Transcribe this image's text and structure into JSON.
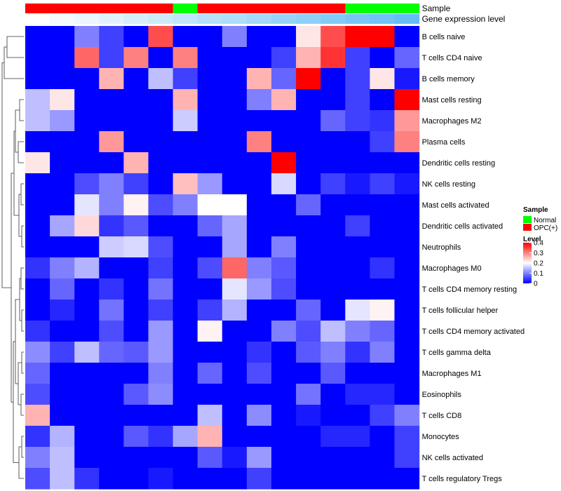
{
  "chart_data": {
    "type": "heatmap",
    "title": "",
    "columns_count": 16,
    "annotation_tracks": [
      {
        "name": "Sample",
        "values": [
          "OPC(+)",
          "OPC(+)",
          "OPC(+)",
          "OPC(+)",
          "OPC(+)",
          "OPC(+)",
          "Normal",
          "OPC(+)",
          "OPC(+)",
          "OPC(+)",
          "OPC(+)",
          "OPC(+)",
          "OPC(+)",
          "Normal",
          "Normal",
          "Normal"
        ]
      },
      {
        "name": "Gene expression level",
        "values": [
          0,
          0.07,
          0.13,
          0.2,
          0.27,
          0.33,
          0.4,
          0.47,
          0.53,
          0.6,
          0.67,
          0.73,
          0.8,
          0.87,
          0.93,
          1.0
        ]
      }
    ],
    "rows": [
      "B cells naive",
      "T cells CD4 naive",
      "B cells memory",
      "Mast cells resting",
      "Macrophages M2",
      "Plasma cells",
      "Dendritic cells resting",
      "NK cells resting",
      "Mast cells activated",
      "Dendritic cells activated",
      "Neutrophils",
      "Macrophages M0",
      "T cells CD4 memory resting",
      "T cells follicular helper",
      "T cells CD4 memory activated",
      "T cells gamma delta",
      "Macrophages M1",
      "Eosinophils",
      "T cells CD8",
      "Monocytes",
      "NK cells activated",
      "T cells regulatory  Tregs"
    ],
    "values": [
      [
        0.0,
        0.0,
        0.1,
        0.05,
        0.0,
        0.34,
        0.0,
        0.0,
        0.1,
        0.0,
        0.0,
        0.22,
        0.34,
        0.4,
        0.4,
        0.0
      ],
      [
        0.0,
        0.0,
        0.32,
        0.05,
        0.3,
        0.0,
        0.3,
        0.0,
        0.0,
        0.0,
        0.05,
        0.26,
        0.36,
        0.05,
        0.0,
        0.08
      ],
      [
        0.0,
        0.0,
        0.0,
        0.26,
        0.0,
        0.15,
        0.05,
        0.0,
        0.0,
        0.26,
        0.08,
        0.4,
        0.0,
        0.05,
        0.22,
        0.02
      ],
      [
        0.15,
        0.22,
        0.0,
        0.0,
        0.0,
        0.0,
        0.26,
        0.0,
        0.0,
        0.1,
        0.26,
        0.0,
        0.0,
        0.05,
        0.0,
        0.4
      ],
      [
        0.15,
        0.12,
        0.0,
        0.0,
        0.0,
        0.0,
        0.16,
        0.0,
        0.0,
        0.0,
        0.0,
        0.0,
        0.08,
        0.05,
        0.04,
        0.28
      ],
      [
        0.0,
        0.0,
        0.0,
        0.28,
        0.0,
        0.0,
        0.0,
        0.0,
        0.0,
        0.3,
        0.0,
        0.0,
        0.0,
        0.0,
        0.05,
        0.3
      ],
      [
        0.22,
        0.0,
        0.0,
        0.0,
        0.26,
        0.0,
        0.0,
        0.0,
        0.0,
        0.0,
        0.4,
        0.0,
        0.0,
        0.0,
        0.0,
        0.0
      ],
      [
        0.0,
        0.0,
        0.06,
        0.1,
        0.05,
        0.0,
        0.25,
        0.12,
        0.0,
        0.0,
        0.17,
        0.0,
        0.05,
        0.02,
        0.05,
        0.02
      ],
      [
        0.0,
        0.0,
        0.18,
        0.1,
        0.21,
        0.06,
        0.1,
        0.2,
        0.2,
        0.0,
        0.0,
        0.08,
        0.0,
        0.0,
        0.0,
        0.0
      ],
      [
        0.0,
        0.13,
        0.23,
        0.04,
        0.07,
        0.0,
        0.0,
        0.08,
        0.13,
        0.0,
        0.0,
        0.0,
        0.0,
        0.05,
        0.0,
        0.0
      ],
      [
        0.0,
        0.0,
        0.0,
        0.16,
        0.17,
        0.06,
        0.0,
        0.0,
        0.13,
        0.0,
        0.1,
        0.0,
        0.0,
        0.0,
        0.0,
        0.0
      ],
      [
        0.04,
        0.1,
        0.14,
        0.0,
        0.0,
        0.05,
        0.0,
        0.06,
        0.32,
        0.1,
        0.07,
        0.0,
        0.0,
        0.0,
        0.04,
        0.0
      ],
      [
        0.0,
        0.08,
        0.0,
        0.04,
        0.0,
        0.09,
        0.0,
        0.0,
        0.18,
        0.12,
        0.06,
        0.0,
        0.0,
        0.0,
        0.0,
        0.0
      ],
      [
        0.0,
        0.03,
        0.0,
        0.09,
        0.0,
        0.05,
        0.0,
        0.05,
        0.14,
        0.0,
        0.0,
        0.08,
        0.0,
        0.18,
        0.21,
        0.0
      ],
      [
        0.04,
        0.0,
        0.0,
        0.06,
        0.0,
        0.12,
        0.0,
        0.21,
        0.0,
        0.0,
        0.1,
        0.06,
        0.15,
        0.1,
        0.08,
        0.0
      ],
      [
        0.11,
        0.05,
        0.15,
        0.08,
        0.07,
        0.12,
        0.0,
        0.0,
        0.0,
        0.04,
        0.0,
        0.07,
        0.1,
        0.04,
        0.1,
        0.0
      ],
      [
        0.08,
        0.0,
        0.0,
        0.0,
        0.0,
        0.1,
        0.0,
        0.08,
        0.0,
        0.06,
        0.0,
        0.0,
        0.07,
        0.0,
        0.0,
        0.0
      ],
      [
        0.06,
        0.0,
        0.0,
        0.0,
        0.07,
        0.11,
        0.0,
        0.0,
        0.0,
        0.0,
        0.0,
        0.09,
        0.0,
        0.03,
        0.03,
        0.0
      ],
      [
        0.26,
        0.0,
        0.0,
        0.0,
        0.0,
        0.0,
        0.0,
        0.15,
        0.0,
        0.11,
        0.0,
        0.02,
        0.0,
        0.0,
        0.05,
        0.1
      ],
      [
        0.04,
        0.14,
        0.0,
        0.0,
        0.07,
        0.04,
        0.13,
        0.26,
        0.0,
        0.0,
        0.0,
        0.0,
        0.03,
        0.03,
        0.0,
        0.05
      ],
      [
        0.1,
        0.15,
        0.0,
        0.0,
        0.0,
        0.0,
        0.0,
        0.07,
        0.02,
        0.12,
        0.0,
        0.0,
        0.0,
        0.0,
        0.0,
        0.05
      ],
      [
        0.06,
        0.15,
        0.04,
        0.0,
        0.0,
        0.02,
        0.0,
        0.0,
        0.0,
        0.05,
        0.0,
        0.0,
        0.0,
        0.0,
        0.0,
        0.0
      ]
    ],
    "color_scale": {
      "name": "Level",
      "min": 0,
      "max": 0.4,
      "ticks": [
        0.4,
        0.3,
        0.2,
        0.1,
        0
      ],
      "low_color": "#0000ff",
      "mid_color": "#ffffff",
      "high_color": "#ff0000"
    },
    "legend": {
      "title": "Sample",
      "entries": [
        {
          "label": "Normal",
          "color": "#00ff00"
        },
        {
          "label": "OPC(+)",
          "color": "#ff0000"
        }
      ],
      "placement": "right"
    },
    "dendrogram": "rows-left"
  }
}
